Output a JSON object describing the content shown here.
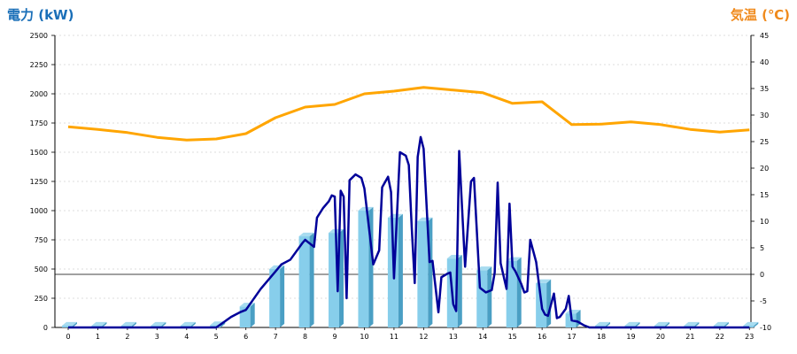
{
  "left_axis_title": "電力 (kW)",
  "right_axis_title": "気温 (℃)",
  "colors": {
    "left_title": "#1a6fb8",
    "right_title": "#f08a1c",
    "bar_front": "#87ceeb",
    "bar_side": "#4a9fc4",
    "bar_top": "#a8dcf0",
    "power_line": "#000099",
    "temp_line": "#ffa500",
    "grid": "#bbbbbb"
  },
  "chart_data": {
    "type": "bar",
    "categories": [
      "0",
      "1",
      "2",
      "3",
      "4",
      "5",
      "6",
      "7",
      "8",
      "9",
      "10",
      "11",
      "12",
      "13",
      "14",
      "15",
      "16",
      "17",
      "18",
      "19",
      "20",
      "21",
      "22",
      "23"
    ],
    "left_axis": {
      "min": 0,
      "max": 2500,
      "ticks": [
        0,
        250,
        500,
        750,
        1000,
        1250,
        1500,
        1750,
        2000,
        2250,
        2500
      ]
    },
    "right_axis": {
      "min": -10,
      "max": 45,
      "ticks": [
        -10,
        -5,
        0,
        5,
        10,
        15,
        20,
        25,
        30,
        35,
        40,
        45
      ]
    },
    "grid": true,
    "series": [
      {
        "type": "bar",
        "axis": "left",
        "values": [
          15,
          15,
          15,
          15,
          15,
          20,
          180,
          500,
          780,
          810,
          1000,
          940,
          910,
          590,
          490,
          570,
          380,
          120,
          15,
          15,
          15,
          15,
          15,
          15
        ]
      },
      {
        "type": "line",
        "axis": "left",
        "x": [
          0,
          1,
          2,
          3,
          4,
          5,
          5.5,
          5.8,
          6,
          6.5,
          7,
          7.2,
          7.5,
          7.7,
          7.9,
          8,
          8.3,
          8.4,
          8.6,
          8.8,
          8.9,
          9,
          9.1,
          9.2,
          9.3,
          9.4,
          9.5,
          9.7,
          9.9,
          10,
          10.3,
          10.5,
          10.6,
          10.8,
          10.9,
          11,
          11.2,
          11.4,
          11.5,
          11.6,
          11.7,
          11.8,
          11.9,
          12,
          12.2,
          12.3,
          12.5,
          12.6,
          12.8,
          12.9,
          13,
          13.1,
          13.2,
          13.4,
          13.6,
          13.7,
          13.9,
          14.1,
          14.3,
          14.4,
          14.5,
          14.6,
          14.8,
          14.9,
          15,
          15.1,
          15.3,
          15.4,
          15.5,
          15.6,
          15.8,
          16,
          16.1,
          16.2,
          16.4,
          16.5,
          16.6,
          16.8,
          16.9,
          17,
          17.2,
          17.4,
          17.6,
          18,
          19,
          20,
          21,
          22,
          23
        ],
        "values": [
          0,
          0,
          0,
          0,
          0,
          0,
          90,
          130,
          150,
          330,
          480,
          540,
          580,
          650,
          720,
          750,
          690,
          940,
          1020,
          1080,
          1130,
          1120,
          310,
          1170,
          1120,
          250,
          1260,
          1310,
          1280,
          1190,
          540,
          660,
          1200,
          1290,
          1160,
          420,
          1500,
          1470,
          1390,
          850,
          380,
          1460,
          1630,
          1530,
          560,
          570,
          130,
          430,
          460,
          470,
          200,
          140,
          1510,
          520,
          1250,
          1280,
          340,
          300,
          320,
          470,
          1240,
          550,
          330,
          1060,
          520,
          480,
          370,
          300,
          310,
          750,
          560,
          160,
          110,
          100,
          290,
          80,
          90,
          160,
          270,
          60,
          50,
          20,
          0,
          0,
          0,
          0,
          0,
          0,
          0
        ]
      },
      {
        "type": "line",
        "axis": "right",
        "values": [
          27.8,
          27.3,
          26.7,
          25.8,
          25.3,
          25.5,
          26.5,
          29.5,
          31.5,
          32.0,
          34.0,
          34.5,
          35.2,
          34.7,
          34.2,
          32.2,
          32.5,
          28.2,
          28.3,
          28.7,
          28.2,
          27.3,
          26.8,
          27.2
        ]
      }
    ]
  }
}
